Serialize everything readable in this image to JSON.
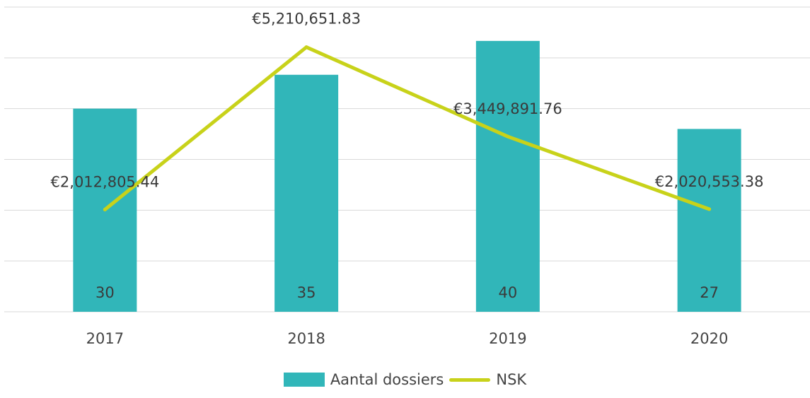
{
  "chart_data": {
    "type": "bar",
    "categories": [
      "2017",
      "2018",
      "2019",
      "2020"
    ],
    "series": [
      {
        "name": "Aantal dossiers",
        "type": "bar",
        "values": [
          30,
          35,
          40,
          27
        ],
        "color": "#31b6b9"
      },
      {
        "name": "NSK",
        "type": "line",
        "values": [
          2012805.44,
          5210651.83,
          3449891.76,
          2020553.38
        ],
        "color": "#c8d21a"
      }
    ],
    "bar_labels": [
      "30",
      "35",
      "40",
      "27"
    ],
    "line_labels": [
      "€2,012,805.44",
      "€5,210,651.83",
      "€3,449,891.76",
      "€2,020,553.38"
    ],
    "bar_ylim": [
      0,
      45
    ],
    "line_ylim": [
      0,
      6000000
    ],
    "grid": true,
    "legend_position": "bottom"
  }
}
